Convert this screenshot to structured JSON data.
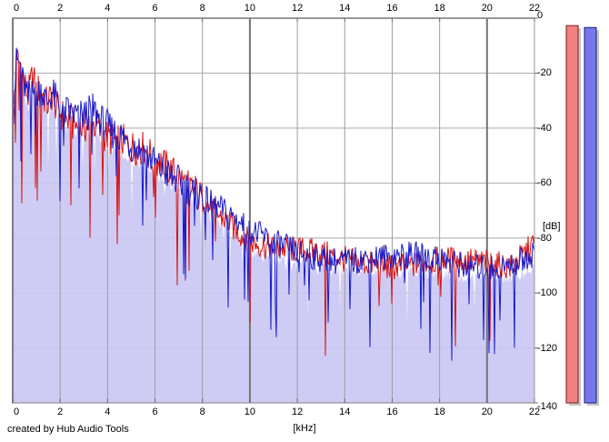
{
  "credit": {
    "text": "created by Hub Audio Tools"
  },
  "chart_data": {
    "type": "line",
    "title": "",
    "xlabel": "[kHz]",
    "ylabel": "[dB]",
    "x_range": [
      0,
      22
    ],
    "y_range": [
      -140,
      0
    ],
    "x_ticks": [
      0,
      2,
      4,
      6,
      8,
      10,
      12,
      14,
      16,
      18,
      20,
      22
    ],
    "y_ticks": [
      0,
      -20,
      -40,
      -60,
      -80,
      -100,
      -120,
      -140
    ],
    "major_x_gridlines": [
      10,
      20
    ],
    "grid": true,
    "legend_position": "none",
    "noise": {
      "jitter_db": 13,
      "spike_depth_db": 26,
      "spike_probability": 0.048
    },
    "series": [
      {
        "name": "left-channel-spectrum",
        "color": "#d81414",
        "envelope_db": [
          [
            0.0,
            -42
          ],
          [
            0.15,
            -15
          ],
          [
            0.35,
            -18
          ],
          [
            0.5,
            -25
          ],
          [
            0.65,
            -29
          ],
          [
            0.85,
            -21
          ],
          [
            1.0,
            -27
          ],
          [
            1.2,
            -25
          ],
          [
            1.45,
            -31
          ],
          [
            1.65,
            -27
          ],
          [
            1.9,
            -32
          ],
          [
            2.2,
            -35
          ],
          [
            2.6,
            -37
          ],
          [
            3.0,
            -38
          ],
          [
            3.4,
            -37
          ],
          [
            3.8,
            -41
          ],
          [
            4.2,
            -44
          ],
          [
            4.6,
            -45
          ],
          [
            5.0,
            -48
          ],
          [
            5.5,
            -49
          ],
          [
            6.0,
            -53
          ],
          [
            6.5,
            -56
          ],
          [
            7.0,
            -59
          ],
          [
            7.5,
            -62
          ],
          [
            8.0,
            -65
          ],
          [
            8.5,
            -69
          ],
          [
            9.0,
            -72
          ],
          [
            9.5,
            -76
          ],
          [
            10.0,
            -80
          ],
          [
            10.5,
            -82
          ],
          [
            11.0,
            -84
          ],
          [
            11.5,
            -85
          ],
          [
            12.0,
            -86
          ],
          [
            13.0,
            -87
          ],
          [
            14.0,
            -88
          ],
          [
            15.0,
            -88
          ],
          [
            16.0,
            -89
          ],
          [
            17.0,
            -89
          ],
          [
            18.0,
            -89
          ],
          [
            19.0,
            -90
          ],
          [
            20.0,
            -90
          ],
          [
            21.0,
            -90
          ],
          [
            22.0,
            -80
          ]
        ]
      },
      {
        "name": "right-channel-spectrum",
        "color": "#1a1ac8",
        "envelope_db": [
          [
            0.0,
            -40
          ],
          [
            0.15,
            -13
          ],
          [
            0.35,
            -16
          ],
          [
            0.5,
            -24
          ],
          [
            0.65,
            -28
          ],
          [
            0.85,
            -19
          ],
          [
            1.0,
            -26
          ],
          [
            1.2,
            -24
          ],
          [
            1.45,
            -30
          ],
          [
            1.65,
            -26
          ],
          [
            1.9,
            -31
          ],
          [
            2.2,
            -34
          ],
          [
            2.6,
            -36
          ],
          [
            3.0,
            -37
          ],
          [
            3.4,
            -35
          ],
          [
            3.8,
            -40
          ],
          [
            4.2,
            -43
          ],
          [
            4.6,
            -44
          ],
          [
            5.0,
            -47
          ],
          [
            5.5,
            -48
          ],
          [
            6.0,
            -52
          ],
          [
            6.5,
            -55
          ],
          [
            7.0,
            -58
          ],
          [
            7.5,
            -61
          ],
          [
            8.0,
            -64
          ],
          [
            8.5,
            -68
          ],
          [
            9.0,
            -71
          ],
          [
            9.5,
            -75
          ],
          [
            10.0,
            -79
          ],
          [
            10.5,
            -81
          ],
          [
            11.0,
            -83
          ],
          [
            11.5,
            -84
          ],
          [
            12.0,
            -85
          ],
          [
            13.0,
            -86
          ],
          [
            14.0,
            -87
          ],
          [
            15.0,
            -87
          ],
          [
            16.0,
            -88
          ],
          [
            17.0,
            -88
          ],
          [
            18.0,
            -88
          ],
          [
            19.0,
            -89
          ],
          [
            20.0,
            -89
          ],
          [
            21.0,
            -89
          ],
          [
            22.0,
            -86
          ]
        ]
      }
    ],
    "fill_series": {
      "name": "average-spectrum-fill",
      "color": "#c9c7f3",
      "offset_db": -5
    },
    "meters": [
      {
        "name": "left-peak-meter",
        "color": "#f28080",
        "border": "#7a1d1d",
        "value_db": -2.7
      },
      {
        "name": "right-peak-meter",
        "color": "#7878ec",
        "border": "#1d1d7a",
        "value_db": -3.4
      }
    ],
    "frame_color": "#828282",
    "gridline_color": "#a9a9a9",
    "major_gridline_color": "#757575"
  }
}
